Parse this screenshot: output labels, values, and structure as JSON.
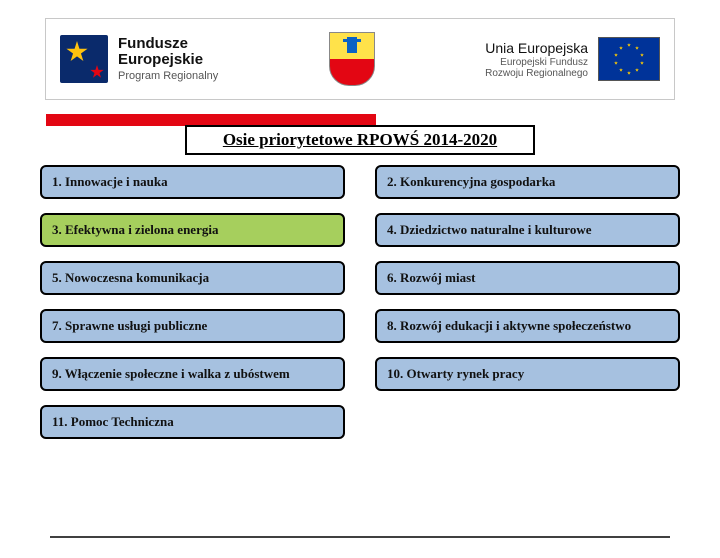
{
  "header": {
    "fe_title_line1": "Fundusze",
    "fe_title_line2": "Europejskie",
    "fe_subtitle": "Program Regionalny",
    "ue_title": "Unia Europejska",
    "ue_sub_line1": "Europejski Fundusz",
    "ue_sub_line2": "Rozwoju Regionalnego"
  },
  "title": "Osie priorytetowe RPOWŚ 2014-2020",
  "colors": {
    "blue_cell": "#a6c1e0",
    "green_cell": "#a6cf5d",
    "red_accent": "#e30613",
    "border": "#000000",
    "text": "#111111"
  },
  "axes": [
    {
      "label": "1. Innowacje i nauka",
      "bg": "blue"
    },
    {
      "label": "2. Konkurencyjna gospodarka",
      "bg": "blue"
    },
    {
      "label": "3. Efektywna i zielona energia",
      "bg": "green"
    },
    {
      "label": "4. Dziedzictwo naturalne i kulturowe",
      "bg": "blue"
    },
    {
      "label": "5. Nowoczesna komunikacja",
      "bg": "blue"
    },
    {
      "label": "6. Rozwój miast",
      "bg": "blue"
    },
    {
      "label": "7. Sprawne usługi publiczne",
      "bg": "blue"
    },
    {
      "label": "8. Rozwój edukacji i aktywne społeczeństwo",
      "bg": "blue"
    },
    {
      "label": "9. Włączenie społeczne i walka z ubóstwem",
      "bg": "blue"
    },
    {
      "label": "10. Otwarty rynek pracy",
      "bg": "blue"
    },
    {
      "label": "11. Pomoc Techniczna",
      "bg": "blue"
    }
  ]
}
